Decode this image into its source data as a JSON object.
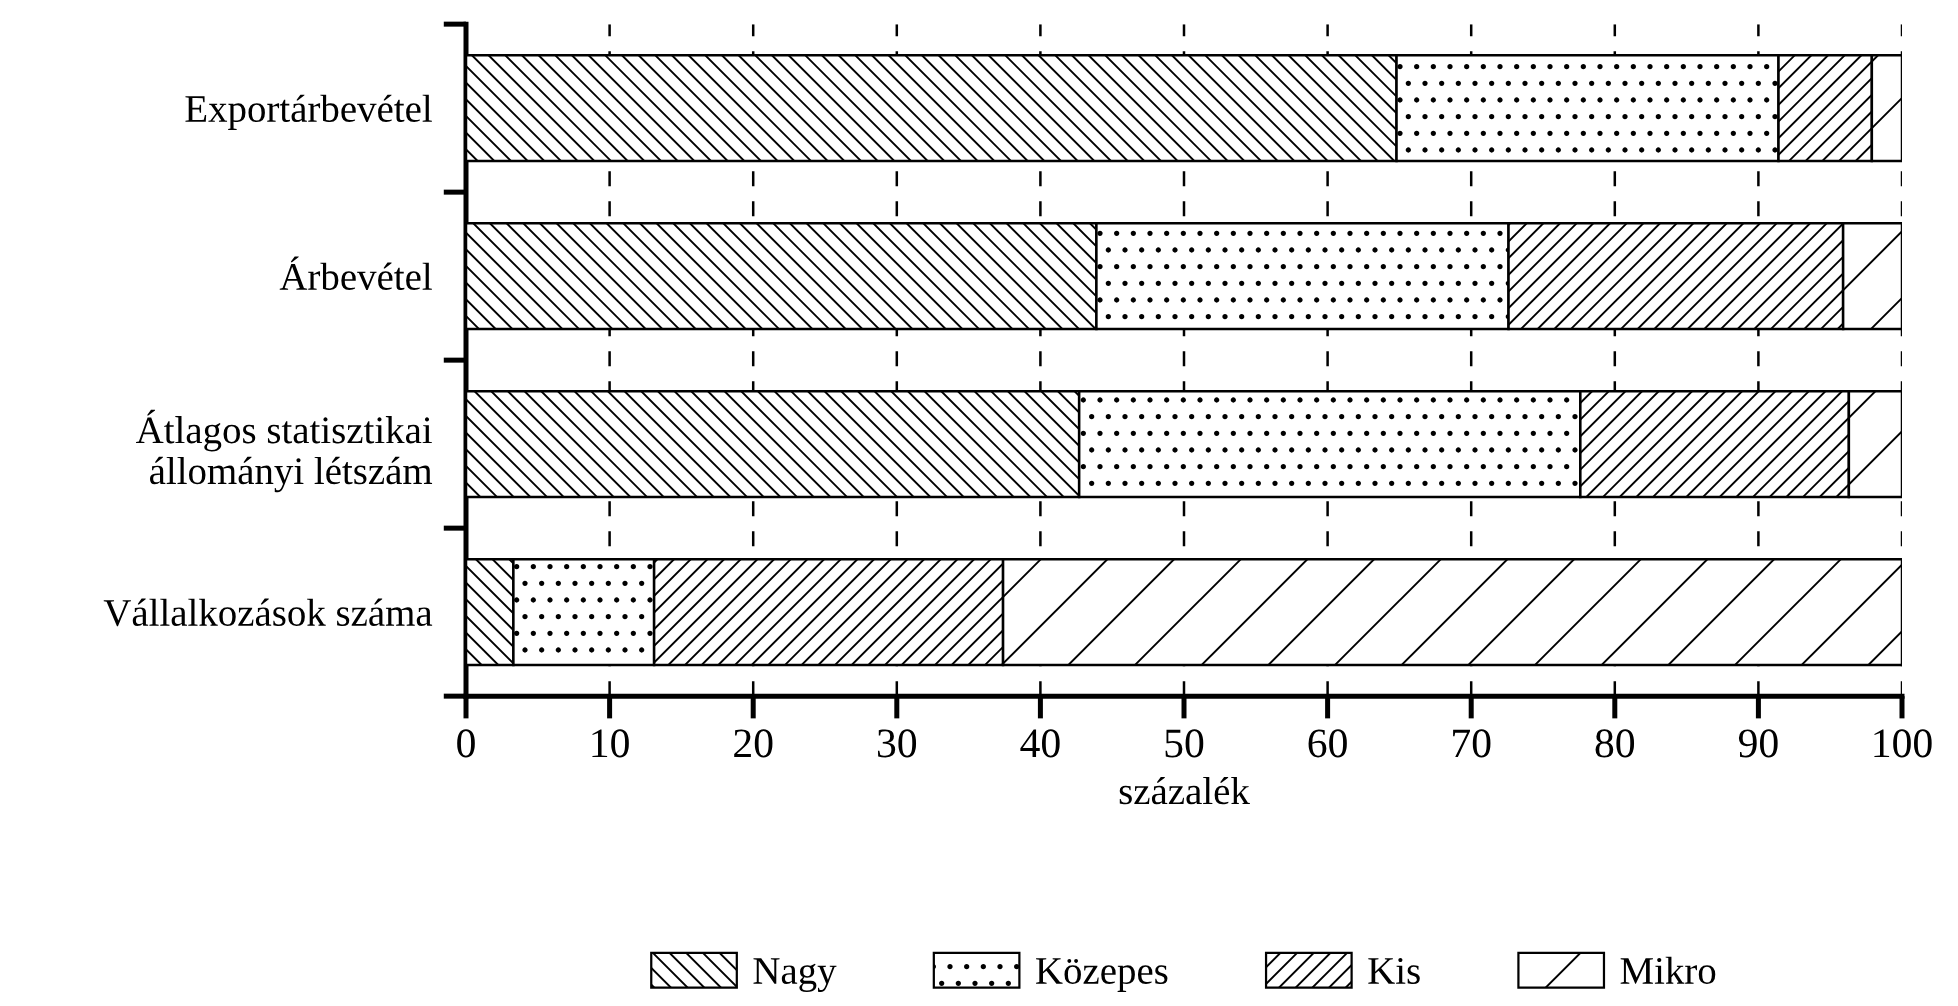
{
  "chart_data": {
    "type": "bar",
    "orientation": "horizontal",
    "stacked": true,
    "xlabel": "százalék",
    "categories": [
      "Exportárbevétel",
      "Árbevétel",
      "Átlagos statisztikai\nállományi létszám",
      "Vállalkozások száma"
    ],
    "series": [
      {
        "name": "Nagy",
        "color": "#000000",
        "values": [
          64.8,
          43.9,
          42.7,
          3.3
        ]
      },
      {
        "name": "Közepes",
        "color": "#000000",
        "values": [
          26.6,
          28.7,
          34.9,
          9.8
        ]
      },
      {
        "name": "Kis",
        "color": "#000000",
        "values": [
          6.5,
          23.3,
          18.7,
          24.3
        ]
      },
      {
        "name": "Mikro",
        "color": "#000000",
        "values": [
          2.1,
          4.1,
          3.7,
          62.6
        ]
      }
    ],
    "xlim": [
      0,
      100
    ],
    "xticks": [
      0,
      10,
      20,
      30,
      40,
      50,
      60,
      70,
      80,
      90,
      100
    ],
    "grid": "x",
    "legend": "bottom"
  }
}
